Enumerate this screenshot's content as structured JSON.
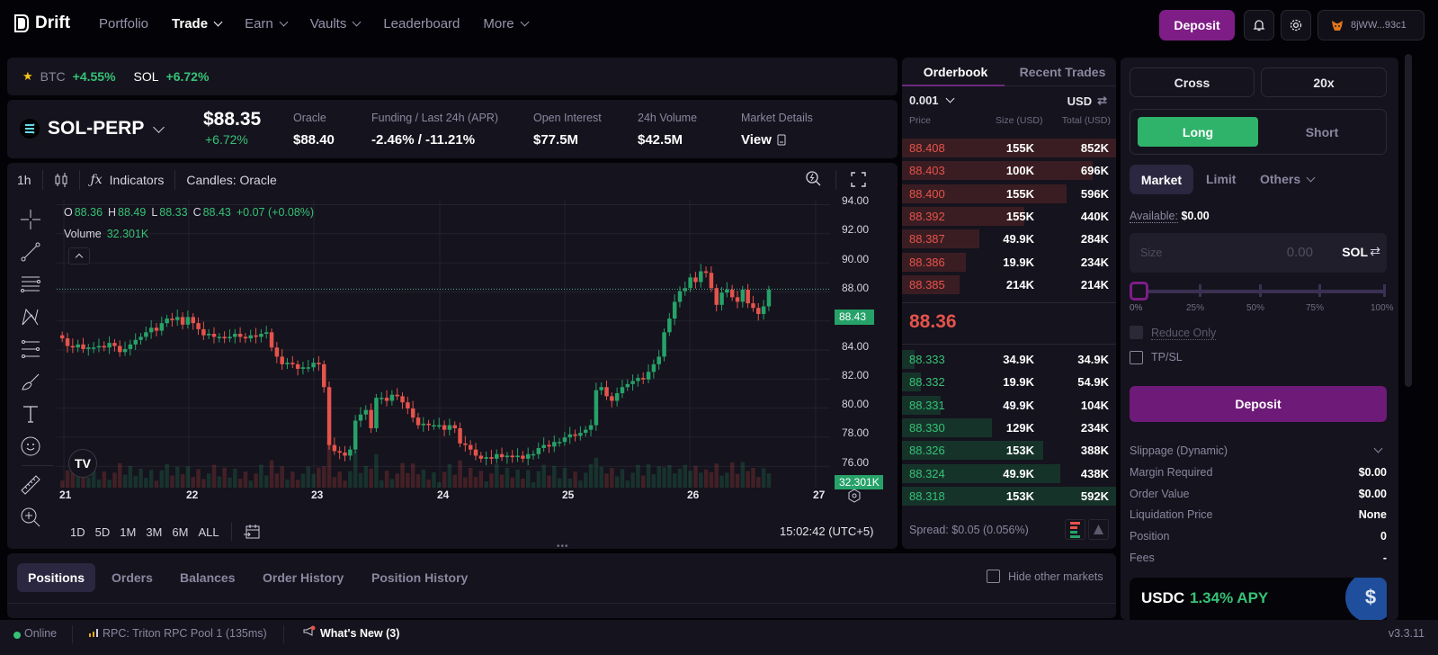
{
  "app": {
    "name": "Drift"
  },
  "nav": {
    "items": [
      {
        "label": "Portfolio",
        "dropdown": false,
        "active": false
      },
      {
        "label": "Trade",
        "dropdown": true,
        "active": true
      },
      {
        "label": "Earn",
        "dropdown": true,
        "active": false
      },
      {
        "label": "Vaults",
        "dropdown": true,
        "active": false
      },
      {
        "label": "Leaderboard",
        "dropdown": false,
        "active": false
      },
      {
        "label": "More",
        "dropdown": true,
        "active": false
      }
    ],
    "deposit_label": "Deposit",
    "wallet_address": "8jWW...93c1"
  },
  "ticker": {
    "items": [
      {
        "symbol": "BTC",
        "change": "+4.55%"
      },
      {
        "symbol": "SOL",
        "change": "+6.72%"
      }
    ]
  },
  "market": {
    "symbol": "SOL-PERP",
    "price": "$88.35",
    "change": "+6.72%",
    "stats": [
      {
        "label": "Oracle",
        "value": "$88.40"
      },
      {
        "label": "Funding / Last 24h (APR)",
        "value": "-2.46% / -11.21%"
      },
      {
        "label": "Open Interest",
        "value": "$77.5M"
      },
      {
        "label": "24h Volume",
        "value": "$42.5M"
      },
      {
        "label": "Market Details",
        "value": "View"
      }
    ]
  },
  "chart": {
    "interval": "1h",
    "indicators_label": "Indicators",
    "candles_label": "Candles: Oracle",
    "ohlc": {
      "o": "88.36",
      "h": "88.49",
      "l": "88.33",
      "c": "88.43",
      "change": "+0.07 (+0.08%)"
    },
    "volume_label": "Volume",
    "volume_value": "32.301K",
    "last_price_tag": "88.43",
    "volume_tag": "32.301K",
    "y_ticks": [
      "94.00",
      "92.00",
      "90.00",
      "88.00",
      "86.00",
      "84.00",
      "82.00",
      "80.00",
      "78.00",
      "76.00"
    ],
    "x_ticks": [
      "21",
      "22",
      "23",
      "24",
      "25",
      "26",
      "27"
    ],
    "ranges": [
      "1D",
      "5D",
      "1M",
      "3M",
      "6M",
      "ALL"
    ],
    "clock": "15:02:42 (UTC+5)",
    "colors": {
      "up": "#26a269",
      "down": "#e5534b"
    }
  },
  "chart_data": {
    "type": "candlestick",
    "title": "SOL-PERP 1h (Oracle)",
    "ylim": [
      75,
      94.5
    ],
    "x_ticks": [
      "21",
      "22",
      "23",
      "24",
      "25",
      "26",
      "27"
    ],
    "candles_close_approx": [
      85.2,
      84.7,
      84.6,
      84.8,
      84.5,
      84.6,
      84.6,
      84.7,
      84.6,
      84.9,
      84.7,
      84.3,
      84.5,
      84.8,
      85.1,
      85.3,
      85.6,
      85.9,
      85.7,
      86.2,
      86.5,
      86.4,
      86.6,
      86.1,
      86.6,
      86.2,
      85.8,
      85.4,
      85.5,
      85.3,
      85.3,
      85.2,
      85.3,
      85.5,
      85.3,
      85.2,
      85.4,
      85.3,
      85.5,
      85.6,
      84.6,
      84.0,
      83.5,
      83.6,
      83.5,
      83.2,
      83.3,
      83.3,
      83.6,
      83.5,
      82.0,
      78.2,
      77.8,
      77.7,
      77.5,
      77.9,
      79.8,
      80.2,
      80.5,
      79.3,
      81.3,
      81.3,
      81.1,
      81.5,
      81.4,
      81.0,
      80.6,
      80.0,
      79.5,
      79.6,
      79.5,
      79.5,
      79.5,
      79.2,
      79.5,
      79.3,
      78.3,
      78.2,
      77.9,
      77.5,
      77.3,
      77.4,
      77.3,
      77.6,
      77.4,
      77.5,
      77.4,
      77.5,
      77.3,
      77.6,
      77.6,
      78.0,
      78.2,
      78.1,
      78.4,
      78.4,
      78.7,
      78.9,
      78.8,
      79.0,
      79.2,
      79.5,
      81.8,
      82.0,
      81.4,
      81.1,
      81.6,
      82.0,
      82.2,
      82.4,
      82.6,
      82.5,
      83.0,
      83.5,
      84.0,
      85.6,
      86.5,
      87.6,
      88.3,
      88.5,
      89.2,
      88.9,
      89.6,
      89.5,
      88.5,
      87.4,
      88.2,
      88.4,
      87.9,
      87.6,
      88.4,
      87.5,
      87.2,
      86.8,
      87.3,
      88.4
    ],
    "last_price": 88.43,
    "volume_last": "32.301K"
  },
  "orderbook": {
    "tabs": [
      "Orderbook",
      "Recent Trades"
    ],
    "tick_size": "0.001",
    "currency": "USD",
    "headers": [
      "Price",
      "Size (USD)",
      "Total (USD)"
    ],
    "asks": [
      {
        "price": "88.408",
        "size": "155K",
        "total": "852K",
        "depth": 100
      },
      {
        "price": "88.403",
        "size": "100K",
        "total": "696K",
        "depth": 89
      },
      {
        "price": "88.400",
        "size": "155K",
        "total": "596K",
        "depth": 77
      },
      {
        "price": "88.392",
        "size": "155K",
        "total": "440K",
        "depth": 57
      },
      {
        "price": "88.387",
        "size": "49.9K",
        "total": "284K",
        "depth": 36
      },
      {
        "price": "88.386",
        "size": "19.9K",
        "total": "234K",
        "depth": 30
      },
      {
        "price": "88.385",
        "size": "214K",
        "total": "214K",
        "depth": 27
      }
    ],
    "mid_price": "88.36",
    "bids": [
      {
        "price": "88.333",
        "size": "34.9K",
        "total": "34.9K",
        "depth": 6
      },
      {
        "price": "88.332",
        "size": "19.9K",
        "total": "54.9K",
        "depth": 9
      },
      {
        "price": "88.331",
        "size": "49.9K",
        "total": "104K",
        "depth": 18
      },
      {
        "price": "88.330",
        "size": "129K",
        "total": "234K",
        "depth": 42
      },
      {
        "price": "88.326",
        "size": "153K",
        "total": "388K",
        "depth": 66
      },
      {
        "price": "88.324",
        "size": "49.9K",
        "total": "438K",
        "depth": 74
      },
      {
        "price": "88.318",
        "size": "153K",
        "total": "592K",
        "depth": 100
      }
    ],
    "spread": "Spread: $0.05 (0.056%)"
  },
  "order_form": {
    "margin_mode": "Cross",
    "leverage": "20x",
    "sides": [
      "Long",
      "Short"
    ],
    "order_types": [
      "Market",
      "Limit",
      "Others"
    ],
    "available_label": "Available:",
    "available_value": "$0.00",
    "size_placeholder": "Size",
    "size_value": "0.00",
    "size_unit": "SOL",
    "slider_marks": [
      "0%",
      "25%",
      "50%",
      "75%",
      "100%"
    ],
    "reduce_only": "Reduce Only",
    "tpsl": "TP/SL",
    "deposit_label": "Deposit",
    "details": [
      {
        "label": "Slippage (Dynamic)",
        "value": ""
      },
      {
        "label": "Margin Required",
        "value": "$0.00"
      },
      {
        "label": "Order Value",
        "value": "$0.00"
      },
      {
        "label": "Liquidation Price",
        "value": "None"
      },
      {
        "label": "Position",
        "value": "0"
      },
      {
        "label": "Fees",
        "value": "-"
      }
    ],
    "promo": {
      "asset": "USDC",
      "apy": "1.34% APY"
    }
  },
  "bottom": {
    "tabs": [
      "Positions",
      "Orders",
      "Balances",
      "Order History",
      "Position History"
    ],
    "hide_other_markets": "Hide other markets"
  },
  "status": {
    "online": "Online",
    "rpc": "RPC: Triton RPC Pool 1 (135ms)",
    "whats_new": "What's New (3)",
    "version": "v3.3.11"
  }
}
